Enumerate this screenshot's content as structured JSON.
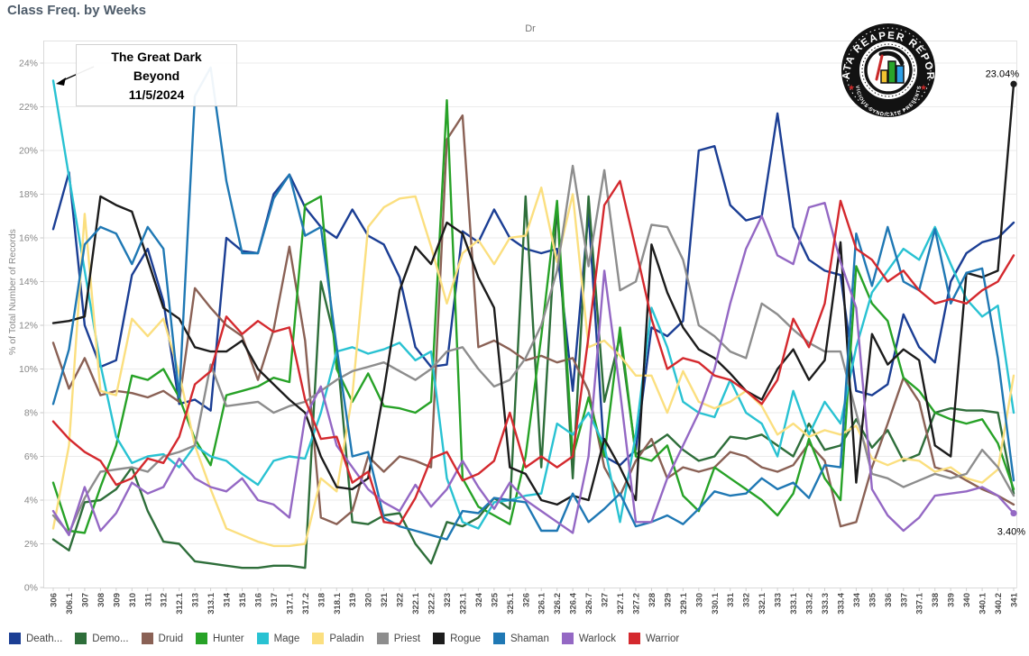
{
  "title": "Class Freq. by Weeks",
  "pane_header": "Dr",
  "y_axis_title": "% of Total Number of Records",
  "y_ticks": [
    "0%",
    "2%",
    "4%",
    "6%",
    "8%",
    "10%",
    "12%",
    "14%",
    "16%",
    "18%",
    "20%",
    "22%",
    "24%"
  ],
  "annotation": {
    "line1": "The Great Dark",
    "line2": "Beyond",
    "line3": "11/5/2024"
  },
  "logo": {
    "top_text": "DATA REAPER REPORT",
    "bottom_text": "VICIOUS SYNDICATE PRESENTS"
  },
  "end_labels": [
    {
      "series": "Rogue",
      "text": "23.04%"
    },
    {
      "series": "Warlock",
      "text": "3.40%"
    }
  ],
  "legend": [
    {
      "label": "Death...",
      "color": "#1b3e94"
    },
    {
      "label": "Demo...",
      "color": "#2e6e3a"
    },
    {
      "label": "Druid",
      "color": "#8a6155"
    },
    {
      "label": "Hunter",
      "color": "#27a227"
    },
    {
      "label": "Mage",
      "color": "#29c2d2"
    },
    {
      "label": "Paladin",
      "color": "#fbdf7f"
    },
    {
      "label": "Priest",
      "color": "#8d8d8d"
    },
    {
      "label": "Rogue",
      "color": "#1c1c1c"
    },
    {
      "label": "Shaman",
      "color": "#1f78b4"
    },
    {
      "label": "Warlock",
      "color": "#9468c4"
    },
    {
      "label": "Warrior",
      "color": "#d4292e"
    }
  ],
  "chart_data": {
    "type": "line",
    "title": "Class Freq. by Weeks",
    "xlabel": "",
    "ylabel": "% of Total Number of Records",
    "ylim": [
      0,
      25
    ],
    "ytick_step": 2,
    "grid": true,
    "legend_position": "bottom",
    "categories": [
      "306",
      "306.1",
      "307",
      "308",
      "309",
      "310",
      "311",
      "312",
      "312.1",
      "313",
      "313.1",
      "314",
      "315",
      "316",
      "317",
      "317.1",
      "317.2",
      "318",
      "318.1",
      "319",
      "320",
      "321",
      "322",
      "322.1",
      "322.2",
      "323",
      "323.1",
      "324",
      "325",
      "325.1",
      "326",
      "326.1",
      "326.2",
      "326.4",
      "326.7",
      "327",
      "327.1",
      "327.2",
      "328",
      "329",
      "329.1",
      "330",
      "330.1",
      "331",
      "332",
      "332.1",
      "333",
      "333.1",
      "333.2",
      "333.3",
      "333.4",
      "334",
      "335",
      "336",
      "337",
      "337.1",
      "338",
      "339",
      "340",
      "340.1",
      "340.2",
      "341"
    ],
    "series": [
      {
        "name": "Death...",
        "color": "#1b3e94",
        "values": [
          16.4,
          19.0,
          12.0,
          10.1,
          10.4,
          14.3,
          15.5,
          13.1,
          8.4,
          8.6,
          8.1,
          16.0,
          15.4,
          15.3,
          18.0,
          18.9,
          17.4,
          16.5,
          16.0,
          17.3,
          16.1,
          15.7,
          14.2,
          11.0,
          10.1,
          10.2,
          16.3,
          15.8,
          17.3,
          16.0,
          15.5,
          15.3,
          15.5,
          9.0,
          17.2,
          6.0,
          5.6,
          6.3,
          11.9,
          11.5,
          12.2,
          20.0,
          20.2,
          17.5,
          16.8,
          17.0,
          21.7,
          16.5,
          15.0,
          14.5,
          14.3,
          9.0,
          8.8,
          9.3,
          12.5,
          11.0,
          10.3,
          14.0,
          15.3,
          15.8,
          16.0,
          16.7
        ]
      },
      {
        "name": "Demo...",
        "color": "#2e6e3a",
        "values": [
          2.2,
          1.7,
          3.9,
          4.0,
          4.5,
          5.5,
          3.5,
          2.1,
          2.0,
          1.2,
          1.1,
          1.0,
          0.9,
          0.9,
          1.0,
          1.0,
          0.9,
          14.0,
          11.0,
          3.0,
          2.9,
          3.3,
          3.4,
          2.0,
          1.1,
          3.0,
          2.8,
          3.2,
          4.1,
          3.6,
          17.9,
          5.5,
          17.5,
          5.0,
          17.9,
          8.5,
          11.5,
          6.1,
          6.5,
          7.0,
          6.3,
          5.8,
          6.0,
          6.9,
          6.8,
          7.0,
          6.5,
          6.0,
          7.5,
          6.3,
          6.5,
          7.7,
          6.4,
          7.2,
          5.8,
          6.1,
          8.0,
          8.2,
          8.1,
          8.1,
          8.0,
          4.3
        ]
      },
      {
        "name": "Druid",
        "color": "#8a6155",
        "values": [
          11.2,
          9.1,
          10.5,
          8.8,
          9.0,
          8.9,
          8.7,
          9.0,
          8.5,
          13.7,
          12.8,
          12.0,
          11.5,
          9.5,
          11.8,
          15.6,
          11.3,
          3.2,
          2.9,
          3.5,
          6.0,
          5.3,
          6.0,
          5.8,
          5.5,
          20.5,
          21.6,
          11.0,
          11.3,
          10.9,
          10.4,
          10.6,
          10.3,
          10.5,
          9.0,
          5.5,
          4.2,
          5.8,
          6.8,
          5.0,
          5.5,
          5.3,
          5.5,
          6.2,
          6.0,
          5.5,
          5.3,
          5.6,
          6.6,
          5.8,
          2.8,
          3.0,
          5.5,
          7.5,
          9.6,
          8.5,
          5.5,
          5.3,
          4.9,
          4.5,
          4.2,
          3.8
        ]
      },
      {
        "name": "Hunter",
        "color": "#27a227",
        "values": [
          4.8,
          2.6,
          2.5,
          4.6,
          6.5,
          9.7,
          9.5,
          10.0,
          8.7,
          6.8,
          5.6,
          8.8,
          9.0,
          9.2,
          9.6,
          9.4,
          17.5,
          17.9,
          10.0,
          8.5,
          9.8,
          8.3,
          8.2,
          8.0,
          8.5,
          22.3,
          5.0,
          3.7,
          3.3,
          2.9,
          6.0,
          11.5,
          17.7,
          6.0,
          8.7,
          6.0,
          11.9,
          6.0,
          5.8,
          6.5,
          4.2,
          3.5,
          5.5,
          5.0,
          4.5,
          4.0,
          3.3,
          4.3,
          6.8,
          5.0,
          4.0,
          14.7,
          13.0,
          12.2,
          9.6,
          9.0,
          8.0,
          7.7,
          7.5,
          7.7,
          6.6,
          4.5
        ]
      },
      {
        "name": "Mage",
        "color": "#29c2d2",
        "values": [
          23.2,
          18.8,
          14.5,
          10.2,
          6.9,
          5.7,
          6.0,
          6.1,
          5.5,
          6.5,
          6.0,
          5.8,
          5.2,
          4.7,
          5.8,
          6.0,
          5.9,
          8.0,
          10.8,
          11.0,
          10.7,
          10.9,
          11.2,
          10.4,
          10.8,
          5.0,
          3.0,
          2.7,
          3.9,
          4.0,
          4.2,
          4.3,
          7.5,
          7.0,
          8.0,
          6.5,
          3.0,
          7.0,
          12.8,
          11.0,
          8.5,
          8.0,
          7.8,
          9.5,
          8.0,
          7.5,
          6.0,
          9.0,
          7.0,
          8.5,
          7.5,
          11.0,
          13.5,
          14.5,
          15.5,
          15.0,
          16.5,
          14.8,
          13.2,
          12.4,
          12.9,
          8.0
        ]
      },
      {
        "name": "Paladin",
        "color": "#fbdf7f",
        "values": [
          2.7,
          6.5,
          17.1,
          9.0,
          8.8,
          12.3,
          11.5,
          12.3,
          9.8,
          6.5,
          4.5,
          2.7,
          2.4,
          2.1,
          1.9,
          1.9,
          2.0,
          5.0,
          4.4,
          8.8,
          16.5,
          17.4,
          17.8,
          17.9,
          15.6,
          13.0,
          15.3,
          15.9,
          14.8,
          16.0,
          16.1,
          18.3,
          14.9,
          18.0,
          11.0,
          11.3,
          10.6,
          9.7,
          9.7,
          8.0,
          9.9,
          8.5,
          8.2,
          8.5,
          9.0,
          8.3,
          7.0,
          7.5,
          6.9,
          7.2,
          7.0,
          7.4,
          5.9,
          5.6,
          5.9,
          5.8,
          5.3,
          5.5,
          5.0,
          4.8,
          5.4,
          9.7
        ]
      },
      {
        "name": "Priest",
        "color": "#8d8d8d",
        "values": [
          3.3,
          2.5,
          4.1,
          5.3,
          5.4,
          5.5,
          5.3,
          6.0,
          6.2,
          6.5,
          10.2,
          8.3,
          8.4,
          8.5,
          8.0,
          8.3,
          8.5,
          9.0,
          9.5,
          9.9,
          10.1,
          10.3,
          9.9,
          9.5,
          10.0,
          10.8,
          11.0,
          10.0,
          9.2,
          9.5,
          10.5,
          12.0,
          14.5,
          19.3,
          14.7,
          19.1,
          13.6,
          14.0,
          16.6,
          16.5,
          15.0,
          12.0,
          11.5,
          10.8,
          10.5,
          13.0,
          12.5,
          11.8,
          11.2,
          10.8,
          10.8,
          8.0,
          5.2,
          5.0,
          4.6,
          4.9,
          5.2,
          5.0,
          5.2,
          6.3,
          5.5,
          4.2
        ]
      },
      {
        "name": "Rogue",
        "color": "#1c1c1c",
        "values": [
          12.1,
          12.2,
          12.4,
          17.9,
          17.5,
          17.2,
          15.0,
          12.8,
          12.3,
          11.0,
          10.8,
          10.8,
          11.3,
          10.0,
          9.3,
          8.6,
          8.0,
          6.0,
          4.6,
          4.5,
          5.0,
          9.0,
          13.6,
          15.6,
          14.8,
          16.7,
          16.2,
          14.2,
          12.8,
          5.5,
          5.2,
          4.0,
          3.8,
          4.2,
          4.0,
          6.8,
          5.5,
          4.0,
          15.7,
          13.5,
          11.9,
          10.9,
          10.5,
          9.8,
          9.0,
          8.6,
          10.0,
          10.9,
          9.5,
          10.4,
          15.8,
          4.8,
          11.6,
          10.2,
          10.9,
          10.4,
          6.5,
          6.0,
          14.4,
          14.2,
          14.5,
          23.04
        ]
      },
      {
        "name": "Shaman",
        "color": "#1f78b4",
        "values": [
          8.4,
          10.9,
          15.7,
          16.5,
          16.2,
          14.8,
          16.5,
          15.5,
          8.7,
          22.5,
          23.8,
          18.6,
          15.3,
          15.3,
          17.8,
          18.9,
          16.1,
          16.5,
          11.0,
          6.0,
          6.2,
          3.2,
          2.8,
          2.6,
          2.4,
          2.2,
          3.5,
          3.4,
          4.1,
          4.0,
          3.9,
          2.6,
          2.6,
          4.3,
          3.0,
          3.6,
          4.3,
          2.8,
          3.0,
          3.3,
          2.9,
          3.6,
          4.4,
          4.2,
          4.3,
          5.0,
          4.5,
          4.8,
          4.1,
          5.6,
          5.5,
          16.2,
          13.8,
          16.5,
          14.0,
          13.6,
          16.4,
          13.0,
          14.4,
          14.6,
          10.5,
          4.9
        ]
      },
      {
        "name": "Warlock",
        "color": "#9468c4",
        "values": [
          3.5,
          2.4,
          4.6,
          2.6,
          3.4,
          4.8,
          4.3,
          4.6,
          5.9,
          5.0,
          4.6,
          4.4,
          5.0,
          4.0,
          3.8,
          3.2,
          7.8,
          9.2,
          6.5,
          5.5,
          4.5,
          3.9,
          3.5,
          4.7,
          3.7,
          4.5,
          5.8,
          4.6,
          3.6,
          4.8,
          4.0,
          3.5,
          3.0,
          2.5,
          6.0,
          14.5,
          9.0,
          3.0,
          3.0,
          5.0,
          6.5,
          8.0,
          10.0,
          13.0,
          15.5,
          17.0,
          15.2,
          14.8,
          17.4,
          17.6,
          14.9,
          12.8,
          4.5,
          3.3,
          2.6,
          3.2,
          4.2,
          4.3,
          4.4,
          4.6,
          4.2,
          3.4
        ]
      },
      {
        "name": "Warrior",
        "color": "#d4292e",
        "values": [
          7.6,
          6.8,
          6.2,
          5.8,
          4.7,
          5.0,
          5.9,
          5.7,
          6.9,
          9.3,
          9.9,
          12.4,
          11.6,
          12.2,
          11.7,
          11.9,
          8.6,
          6.8,
          6.9,
          4.8,
          5.3,
          3.0,
          2.9,
          4.1,
          5.9,
          6.2,
          4.9,
          5.2,
          5.8,
          8.0,
          5.5,
          6.0,
          5.5,
          6.0,
          11.5,
          17.5,
          18.6,
          15.5,
          12.3,
          10.0,
          10.5,
          10.3,
          9.7,
          9.5,
          9.0,
          8.4,
          9.5,
          12.3,
          11.0,
          13.0,
          17.7,
          15.5,
          15.0,
          14.0,
          14.5,
          13.6,
          13.0,
          13.2,
          13.0,
          13.6,
          14.0,
          15.2
        ]
      }
    ]
  }
}
